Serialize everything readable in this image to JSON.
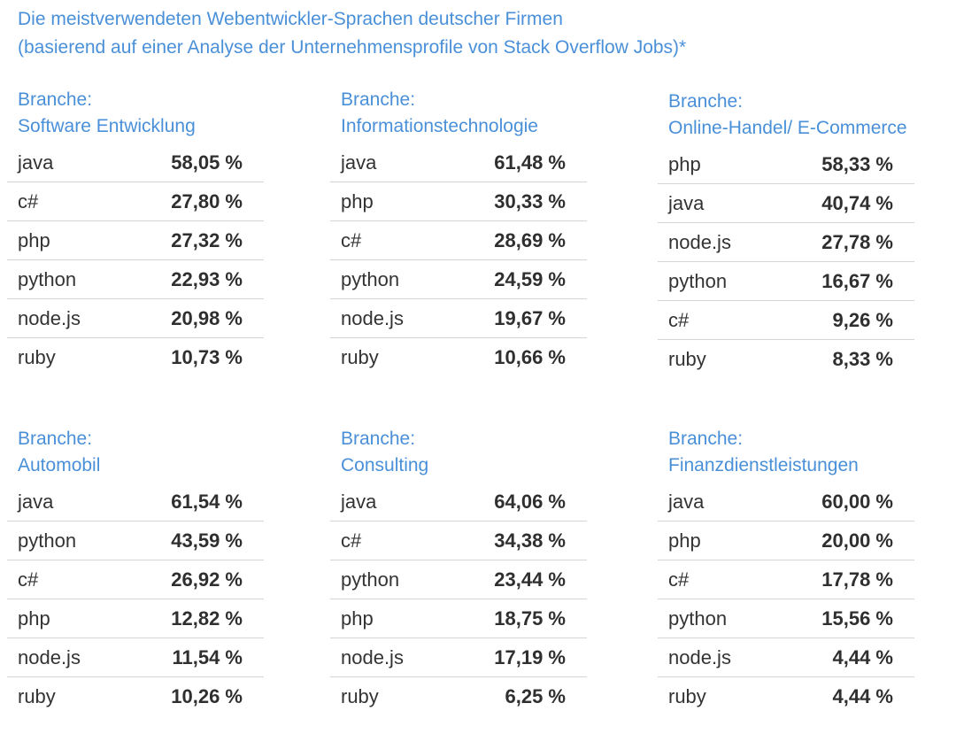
{
  "title_line1": "Die meistverwendeten Webentwickler-Sprachen deutscher Firmen",
  "title_line2": "(basierend auf einer Analyse der Unternehmensprofile von Stack Overflow Jobs)*",
  "blocks": [
    {
      "label": "Branche:",
      "name": "Software Entwicklung",
      "rows": [
        {
          "lang": "java",
          "pct": "58,05 %"
        },
        {
          "lang": "c#",
          "pct": "27,80 %"
        },
        {
          "lang": "php",
          "pct": "27,32 %"
        },
        {
          "lang": "python",
          "pct": "22,93 %"
        },
        {
          "lang": "node.js",
          "pct": "20,98 %"
        },
        {
          "lang": "ruby",
          "pct": "10,73 %"
        }
      ]
    },
    {
      "label": "Branche:",
      "name": "Informationstechnologie",
      "rows": [
        {
          "lang": "java",
          "pct": "61,48 %"
        },
        {
          "lang": "php",
          "pct": "30,33 %"
        },
        {
          "lang": "c#",
          "pct": "28,69 %"
        },
        {
          "lang": "python",
          "pct": "24,59 %"
        },
        {
          "lang": "node.js",
          "pct": "19,67 %"
        },
        {
          "lang": "ruby",
          "pct": "10,66 %"
        }
      ]
    },
    {
      "label": "Branche:",
      "name": "Online-Handel/ E-Commerce",
      "rows": [
        {
          "lang": "php",
          "pct": "58,33 %"
        },
        {
          "lang": "java",
          "pct": "40,74 %"
        },
        {
          "lang": "node.js",
          "pct": "27,78 %"
        },
        {
          "lang": "python",
          "pct": "16,67 %"
        },
        {
          "lang": "c#",
          "pct": "9,26 %"
        },
        {
          "lang": "ruby",
          "pct": "8,33 %"
        }
      ]
    },
    {
      "label": "Branche:",
      "name": "Automobil",
      "rows": [
        {
          "lang": "java",
          "pct": "61,54 %"
        },
        {
          "lang": "python",
          "pct": "43,59 %"
        },
        {
          "lang": "c#",
          "pct": "26,92 %"
        },
        {
          "lang": "php",
          "pct": "12,82 %"
        },
        {
          "lang": "node.js",
          "pct": "11,54 %"
        },
        {
          "lang": "ruby",
          "pct": "10,26 %"
        }
      ]
    },
    {
      "label": "Branche:",
      "name": "Consulting",
      "rows": [
        {
          "lang": "java",
          "pct": "64,06 %"
        },
        {
          "lang": "c#",
          "pct": "34,38 %"
        },
        {
          "lang": "python",
          "pct": "23,44 %"
        },
        {
          "lang": "php",
          "pct": "18,75 %"
        },
        {
          "lang": "node.js",
          "pct": "17,19 %"
        },
        {
          "lang": "ruby",
          "pct": "6,25 %"
        }
      ]
    },
    {
      "label": "Branche:",
      "name": "Finanzdienstleistungen",
      "rows": [
        {
          "lang": "java",
          "pct": "60,00 %"
        },
        {
          "lang": "php",
          "pct": "20,00 %"
        },
        {
          "lang": "c#",
          "pct": "17,78 %"
        },
        {
          "lang": "python",
          "pct": "15,56 %"
        },
        {
          "lang": "node.js",
          "pct": "4,44 %"
        },
        {
          "lang": "ruby",
          "pct": "4,44 %"
        }
      ]
    }
  ]
}
